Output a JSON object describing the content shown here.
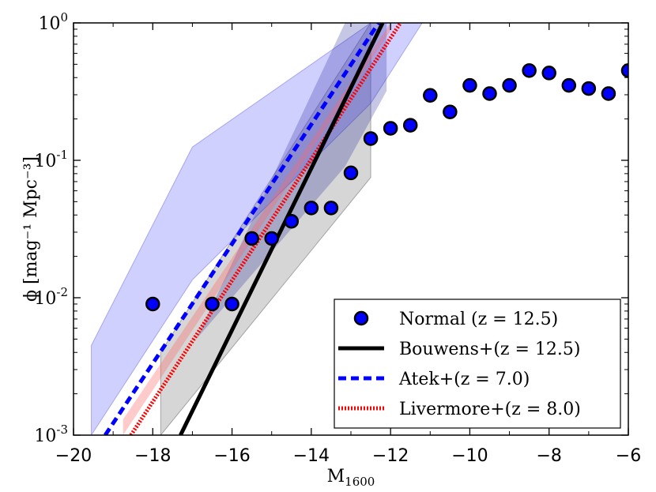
{
  "chart_data": {
    "type": "scatter",
    "xlabel": "M",
    "xlabel_sub": "1600",
    "ylabel": "ϕ [mag⁻¹ Mpc⁻³]",
    "xlim": [
      -20,
      -6
    ],
    "ylim": [
      0.001,
      1
    ],
    "yscale": "log",
    "x_ticks": [
      -20,
      -18,
      -16,
      -14,
      -12,
      -10,
      -8,
      -6
    ],
    "x_tick_labels": [
      "−20",
      "−18",
      "−16",
      "−14",
      "−12",
      "−10",
      "−8",
      "−6"
    ],
    "y_ticks": [
      0.001,
      0.01,
      0.1,
      1
    ],
    "y_tick_labels": [
      {
        "base": "10",
        "exp": "-3"
      },
      {
        "base": "10",
        "exp": "-2"
      },
      {
        "base": "10",
        "exp": "-1"
      },
      {
        "base": "10",
        "exp": "0"
      }
    ],
    "legend_position": "lower-right",
    "series": [
      {
        "name": "Normal (z = 12.5)",
        "kind": "points",
        "color": "#0000ff",
        "x": [
          -18.0,
          -16.5,
          -16.0,
          -15.5,
          -15.0,
          -14.5,
          -14.0,
          -13.5,
          -13.0,
          -12.5,
          -12.0,
          -11.5,
          -11.0,
          -10.5,
          -10.0,
          -9.5,
          -9.0,
          -8.5,
          -8.0,
          -7.5,
          -7.0,
          -6.5,
          -6.0
        ],
        "y": [
          0.009,
          0.009,
          0.009,
          0.027,
          0.027,
          0.036,
          0.045,
          0.045,
          0.081,
          0.144,
          0.171,
          0.18,
          0.297,
          0.225,
          0.351,
          0.306,
          0.351,
          0.45,
          0.432,
          0.351,
          0.333,
          0.306,
          0.45
        ]
      },
      {
        "name": "Bouwens+(z = 12.5)",
        "kind": "line",
        "style": "solid",
        "color": "#000000",
        "x": [
          -17.3,
          -12.2
        ],
        "y": [
          0.001,
          1.0
        ],
        "band": {
          "x": [
            -17.8,
            -12.5
          ],
          "lower": [
            0.001,
            0.075
          ],
          "upper": [
            0.004,
            1.0
          ],
          "color": "#999999"
        }
      },
      {
        "name": "Atek+(z = 7.0)",
        "kind": "line",
        "style": "dashed",
        "color": "#0000ff",
        "x": [
          -19.2,
          -12.3
        ],
        "y": [
          0.001,
          1.0
        ],
        "band": {
          "x": [
            -19.55,
            -17.0,
            -12.5,
            -11.2
          ],
          "lower": [
            0.001,
            0.0135,
            0.26,
            1.0
          ],
          "upper": [
            0.0045,
            0.125,
            1.0,
            1.0
          ],
          "color": "#5555ff"
        },
        "band_inner": {
          "x": [
            -16.9,
            -13.15,
            -12.1
          ],
          "lower": [
            0.005,
            0.09,
            0.32
          ],
          "upper": [
            0.005,
            1.0,
            1.0
          ],
          "color": "#1a1a99"
        }
      },
      {
        "name": "Livermore+(z = 8.0)",
        "kind": "line",
        "style": "dotted",
        "color": "#ff0000",
        "x": [
          -18.55,
          -11.75
        ],
        "y": [
          0.001,
          1.0
        ],
        "band": {
          "x": [
            -18.75,
            -12.0
          ],
          "lower": [
            0.001,
            0.88
          ],
          "upper": [
            0.0013,
            1.0
          ],
          "color": "#ff6666"
        }
      }
    ]
  }
}
